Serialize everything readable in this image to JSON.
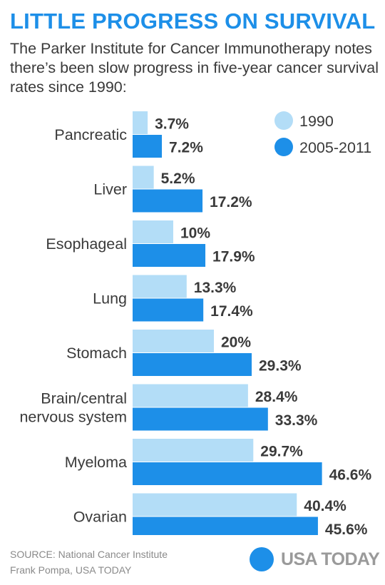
{
  "title": "LITTLE PROGRESS ON SURVIVAL",
  "subtitle": "The Parker Institute for Cancer Immunotherapy notes there’s been slow progress in five-year cancer survival rates since 1990:",
  "source": "SOURCE: National Cancer Institute",
  "credit": "Frank Pompa, USA TODAY",
  "logo_text": "USA TODAY",
  "colors": {
    "title": "#1d8fe8",
    "series_1990": "#b3ddf7",
    "series_2005_2011": "#1d8fe8",
    "logo_dot": "#1d8fe8"
  },
  "chart_data": {
    "type": "bar",
    "orientation": "horizontal",
    "categories": [
      [
        "Pancreatic"
      ],
      [
        "Liver"
      ],
      [
        "Esophageal"
      ],
      [
        "Lung"
      ],
      [
        "Stomach"
      ],
      [
        "Brain/central",
        "nervous system"
      ],
      [
        "Myeloma"
      ],
      [
        "Ovarian"
      ]
    ],
    "series": [
      {
        "name": "1990",
        "values": [
          3.7,
          5.2,
          10,
          13.3,
          20,
          28.4,
          29.7,
          40.4
        ],
        "labels": [
          "3.7%",
          "5.2%",
          "10%",
          "13.3%",
          "20%",
          "28.4%",
          "29.7%",
          "40.4%"
        ]
      },
      {
        "name": "2005-2011",
        "values": [
          7.2,
          17.2,
          17.9,
          17.4,
          29.3,
          33.3,
          46.6,
          45.6
        ],
        "labels": [
          "7.2%",
          "17.2%",
          "17.9%",
          "17.4%",
          "29.3%",
          "33.3%",
          "46.6%",
          "45.6%"
        ]
      }
    ],
    "unit": "%",
    "legend": "top-right",
    "grid": false
  }
}
